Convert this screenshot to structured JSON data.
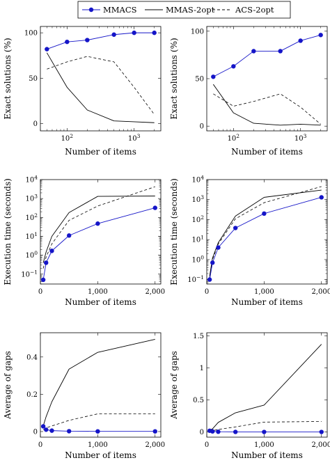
{
  "legend": {
    "entries": [
      {
        "name": "MMACS",
        "color": "#1515c8",
        "style": "solid-marker"
      },
      {
        "name": "MMAS-2opt",
        "color": "#000000",
        "style": "solid"
      },
      {
        "name": "ACS-2opt",
        "color": "#000000",
        "style": "dashed"
      }
    ],
    "placement": "top-center"
  },
  "chart_data": [
    {
      "type": "line",
      "xscale": "log",
      "yscale": "linear",
      "xlabel": "Number of items",
      "ylabel": "Exact solutions (%)",
      "xlim": [
        40,
        2500
      ],
      "ylim": [
        -8,
        107
      ],
      "xticks": [
        100,
        1000
      ],
      "xtick_labels": [
        "10^2",
        "10^3"
      ],
      "yticks": [
        0,
        50,
        100
      ],
      "ytick_labels": [
        "0",
        "50",
        "100"
      ],
      "series": [
        {
          "name": "MMACS",
          "x": [
            50,
            100,
            200,
            500,
            1000,
            2000
          ],
          "y": [
            82,
            90,
            92,
            98,
            100,
            100
          ]
        },
        {
          "name": "MMAS-2opt",
          "x": [
            50,
            100,
            200,
            500,
            1000,
            2000
          ],
          "y": [
            78,
            40,
            15,
            3,
            2,
            1
          ]
        },
        {
          "name": "ACS-2opt",
          "x": [
            50,
            100,
            200,
            500,
            1000,
            2000
          ],
          "y": [
            60,
            68,
            74,
            68,
            40,
            10
          ]
        }
      ]
    },
    {
      "type": "line",
      "xscale": "log",
      "yscale": "linear",
      "xlabel": "Number of items",
      "ylabel": "Exact solutions (%)",
      "xlim": [
        40,
        2500
      ],
      "ylim": [
        -5,
        105
      ],
      "xticks": [
        100,
        1000
      ],
      "xtick_labels": [
        "10^2",
        "10^3"
      ],
      "yticks": [
        0,
        50,
        100
      ],
      "ytick_labels": [
        "0",
        "50",
        "100"
      ],
      "series": [
        {
          "name": "MMACS",
          "x": [
            50,
            100,
            200,
            500,
            1000,
            2000
          ],
          "y": [
            52,
            63,
            79,
            79,
            90,
            96
          ]
        },
        {
          "name": "MMAS-2opt",
          "x": [
            50,
            100,
            200,
            500,
            1000,
            2000
          ],
          "y": [
            44,
            14,
            3,
            1,
            2,
            1
          ]
        },
        {
          "name": "ACS-2opt",
          "x": [
            50,
            100,
            200,
            500,
            1000,
            2000
          ],
          "y": [
            34,
            21,
            26,
            34,
            20,
            2
          ]
        }
      ]
    },
    {
      "type": "line",
      "xscale": "linear",
      "yscale": "log",
      "xlabel": "Number of items",
      "ylabel": "Execution time (seconds)",
      "xlim": [
        0,
        2100
      ],
      "ylim": [
        0.03,
        10000
      ],
      "xticks": [
        0,
        1000,
        2000
      ],
      "xtick_labels": [
        "0",
        "1,000",
        "2,000"
      ],
      "yticks": [
        0.1,
        1,
        10,
        100,
        1000,
        10000
      ],
      "ytick_labels": [
        "10^-1",
        "10^0",
        "10^1",
        "10^2",
        "10^3",
        "10^4"
      ],
      "series": [
        {
          "name": "MMACS",
          "x": [
            50,
            100,
            200,
            500,
            1000,
            2000
          ],
          "y": [
            0.05,
            0.4,
            1.7,
            11,
            47,
            320
          ]
        },
        {
          "name": "MMAS-2opt",
          "x": [
            50,
            100,
            200,
            500,
            1000,
            2000
          ],
          "y": [
            0.4,
            1.5,
            10,
            180,
            1300,
            1350
          ]
        },
        {
          "name": "ACS-2opt",
          "x": [
            50,
            100,
            200,
            500,
            1000,
            2000
          ],
          "y": [
            0.2,
            0.8,
            4,
            70,
            400,
            4200
          ]
        }
      ]
    },
    {
      "type": "line",
      "xscale": "linear",
      "yscale": "log",
      "xlabel": "Number of items",
      "ylabel": "Execution time (seconds)",
      "xlim": [
        0,
        2100
      ],
      "ylim": [
        0.06,
        10000
      ],
      "xticks": [
        0,
        1000,
        2000
      ],
      "xtick_labels": [
        "0",
        "1,000",
        "2,000"
      ],
      "yticks": [
        0.1,
        1,
        10,
        100,
        1000,
        10000
      ],
      "ytick_labels": [
        "10^-1",
        "10^0",
        "10^1",
        "10^2",
        "10^3",
        "10^4"
      ],
      "series": [
        {
          "name": "MMACS",
          "x": [
            50,
            100,
            200,
            500,
            1000,
            2000
          ],
          "y": [
            0.1,
            0.7,
            4,
            38,
            200,
            1300
          ]
        },
        {
          "name": "MMAS-2opt",
          "x": [
            50,
            100,
            200,
            500,
            1000,
            2000
          ],
          "y": [
            0.15,
            1.2,
            7,
            150,
            1300,
            3000
          ]
        },
        {
          "name": "ACS-2opt",
          "x": [
            50,
            100,
            200,
            500,
            1000,
            2000
          ],
          "y": [
            0.12,
            1,
            6,
            110,
            700,
            4500
          ]
        }
      ]
    },
    {
      "type": "line",
      "xscale": "linear",
      "yscale": "linear",
      "xlabel": "Number of items",
      "ylabel": "Average of gaps",
      "xlim": [
        0,
        2100
      ],
      "ylim": [
        -0.03,
        0.53
      ],
      "xticks": [
        0,
        1000,
        2000
      ],
      "xtick_labels": [
        "0",
        "1,000",
        "2,000"
      ],
      "yticks": [
        0,
        0.2,
        0.4
      ],
      "ytick_labels": [
        "0",
        "0.2",
        "0.4"
      ],
      "series": [
        {
          "name": "MMACS",
          "x": [
            50,
            100,
            200,
            500,
            1000,
            2000
          ],
          "y": [
            0.028,
            0.01,
            0.005,
            0.002,
            0.001,
            0.001
          ]
        },
        {
          "name": "MMAS-2opt",
          "x": [
            50,
            100,
            200,
            500,
            1000,
            2000
          ],
          "y": [
            0.03,
            0.08,
            0.16,
            0.335,
            0.425,
            0.495
          ]
        },
        {
          "name": "ACS-2opt",
          "x": [
            50,
            100,
            200,
            500,
            1000,
            2000
          ],
          "y": [
            0.01,
            0.02,
            0.03,
            0.06,
            0.095,
            0.095
          ]
        }
      ]
    },
    {
      "type": "line",
      "xscale": "linear",
      "yscale": "linear",
      "xlabel": "Number of items",
      "ylabel": "Average of gaps",
      "xlim": [
        0,
        2100
      ],
      "ylim": [
        -0.08,
        1.55
      ],
      "xticks": [
        0,
        1000,
        2000
      ],
      "xtick_labels": [
        "0",
        "1,000",
        "2,000"
      ],
      "yticks": [
        0,
        0.5,
        1,
        1.5
      ],
      "ytick_labels": [
        "0",
        "0.5",
        "1",
        "1.5"
      ],
      "series": [
        {
          "name": "MMACS",
          "x": [
            50,
            100,
            200,
            500,
            1000,
            2000
          ],
          "y": [
            0.02,
            0.01,
            0.005,
            0.002,
            0.001,
            0.001
          ]
        },
        {
          "name": "MMAS-2opt",
          "x": [
            50,
            100,
            200,
            500,
            1000,
            2000
          ],
          "y": [
            0.03,
            0.05,
            0.15,
            0.3,
            0.42,
            1.37
          ]
        },
        {
          "name": "ACS-2opt",
          "x": [
            50,
            100,
            200,
            500,
            1000,
            2000
          ],
          "y": [
            0.01,
            0.02,
            0.04,
            0.08,
            0.155,
            0.165
          ]
        }
      ]
    }
  ]
}
